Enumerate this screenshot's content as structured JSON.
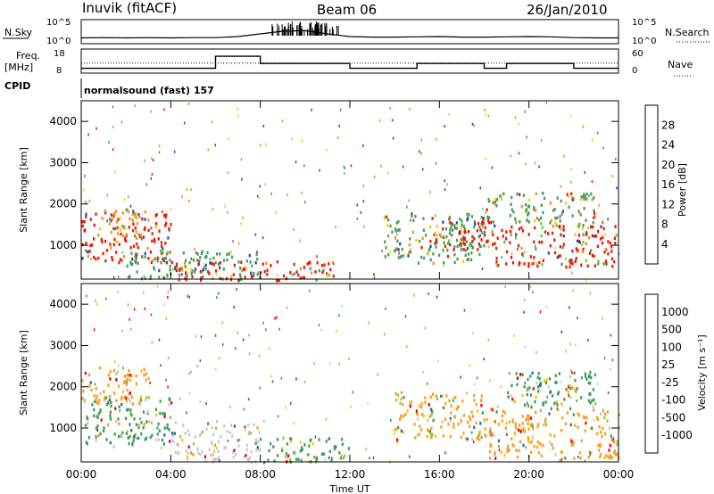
{
  "header": {
    "station": "Inuvik (fitACF)",
    "beam": "Beam 06",
    "date": "26/Jan/2010"
  },
  "top_panels": {
    "nsky_label": "N.Sky",
    "nsky_ticks": [
      "10^5",
      "10^0"
    ],
    "nsearch_label": "N.Search",
    "nsearch_ticks": [
      "10^5",
      "10^0"
    ],
    "freq_label": "Freq.",
    "freq_unit": "[MHz]",
    "freq_ticks": [
      "18",
      "8"
    ],
    "nave_label": "Nave",
    "nave_ticks": [
      "60",
      "0"
    ],
    "cpid_label": "CPID",
    "cpid_value": "normalsound (fast) 157"
  },
  "power_colorbar": {
    "label": "Power [dB]",
    "ticks": [
      "28",
      "24",
      "20",
      "16",
      "12",
      "8",
      "4"
    ],
    "colors": [
      "#ee0000",
      "#ff5a00",
      "#ff9a1a",
      "#f0d000",
      "#6cc83a",
      "#3a8a5a",
      "#2a4aaa",
      "#1030e0"
    ]
  },
  "velocity_colorbar": {
    "label": "Velocity [m s⁻¹]",
    "ticks": [
      "1000",
      "500",
      "100",
      "25",
      "-25",
      "-100",
      "-500",
      "-1000"
    ],
    "colors": [
      "#2030c0",
      "#2a6aa0",
      "#3a9a5a",
      "#7cd04a",
      "#c8c8c8",
      "#ffc000",
      "#ff8a10",
      "#ff5a00",
      "#ee0000"
    ]
  },
  "chart_data": [
    {
      "type": "line",
      "title": "N.Sky / N.Search",
      "x_hours": [
        0,
        1,
        2,
        3,
        4,
        5,
        6,
        7,
        8,
        9,
        10,
        11,
        12,
        13,
        14,
        15,
        16,
        17,
        18,
        19,
        20,
        21,
        22,
        23,
        24
      ],
      "series": [
        {
          "name": "N.Sky",
          "values": [
            1.5,
            1.6,
            1.5,
            1.6,
            1.5,
            1.6,
            1.6,
            2.0,
            3.0,
            4.0,
            4.2,
            3.0,
            2.0,
            1.8,
            1.8,
            1.9,
            2.0,
            1.8,
            1.8,
            1.9,
            2.0,
            1.9,
            1.6,
            1.5,
            1.5
          ]
        }
      ]
    },
    {
      "type": "line",
      "title": "Freq. / Nave",
      "x_hours": [
        0,
        1,
        2,
        3,
        4,
        5,
        6,
        7,
        8,
        9,
        10,
        11,
        12,
        13,
        14,
        15,
        16,
        17,
        18,
        19,
        20,
        21,
        22,
        23,
        24
      ],
      "series": [
        {
          "name": "Freq.",
          "values": [
            10,
            10,
            10,
            10,
            10,
            10,
            15,
            15,
            12,
            12,
            12,
            12,
            10,
            10,
            10,
            12,
            12,
            12,
            10,
            12,
            12,
            12,
            10,
            10,
            10
          ]
        },
        {
          "name": "Nave",
          "values": [
            25,
            25,
            25,
            25,
            25,
            25,
            25,
            25,
            25,
            25,
            25,
            25,
            25,
            25,
            25,
            25,
            25,
            25,
            25,
            25,
            25,
            25,
            25,
            25,
            25
          ]
        }
      ]
    },
    {
      "type": "heatmap",
      "title": "Power",
      "xlabel": "",
      "ylabel": "Slant Range [km]",
      "x_range_hours": [
        0,
        24
      ],
      "ylim": [
        180,
        4500
      ],
      "y_ticks": [
        1000,
        2000,
        3000,
        4000
      ],
      "regions": [
        {
          "t0": 0.0,
          "t1": 4.0,
          "r0": 600,
          "r1": 1800,
          "level": "red"
        },
        {
          "t0": 1.0,
          "t1": 3.0,
          "r0": 1200,
          "r1": 1900,
          "level": "orange"
        },
        {
          "t0": 2.0,
          "t1": 8.0,
          "r0": 200,
          "r1": 900,
          "level": "green"
        },
        {
          "t0": 4.0,
          "t1": 11.5,
          "r0": 180,
          "r1": 650,
          "level": "red"
        },
        {
          "t0": 13.5,
          "t1": 18.0,
          "r0": 600,
          "r1": 1800,
          "level": "green"
        },
        {
          "t0": 15.5,
          "t1": 18.5,
          "r0": 900,
          "r1": 1700,
          "level": "red"
        },
        {
          "t0": 18.5,
          "t1": 24.0,
          "r0": 500,
          "r1": 1500,
          "level": "red"
        },
        {
          "t0": 18.0,
          "t1": 23.0,
          "r0": 1500,
          "r1": 2300,
          "level": "green"
        }
      ]
    },
    {
      "type": "heatmap",
      "title": "Velocity",
      "xlabel": "Time UT",
      "ylabel": "Slant Range [km]",
      "x_range_hours": [
        0,
        24
      ],
      "x_ticks": [
        "00:00",
        "04:00",
        "08:00",
        "12:00",
        "16:00",
        "20:00",
        "00:00"
      ],
      "ylim": [
        180,
        4500
      ],
      "y_ticks": [
        1000,
        2000,
        3000,
        4000
      ],
      "regions": [
        {
          "t0": 0.0,
          "t1": 4.0,
          "r0": 600,
          "r1": 1800,
          "level": "green"
        },
        {
          "t0": 0.0,
          "t1": 3.0,
          "r0": 1600,
          "r1": 2500,
          "level": "orange"
        },
        {
          "t0": 4.0,
          "t1": 8.0,
          "r0": 200,
          "r1": 1200,
          "level": "gray"
        },
        {
          "t0": 8.0,
          "t1": 12.0,
          "r0": 200,
          "r1": 800,
          "level": "green"
        },
        {
          "t0": 14.0,
          "t1": 18.0,
          "r0": 700,
          "r1": 1900,
          "level": "orange"
        },
        {
          "t0": 18.0,
          "t1": 24.0,
          "r0": 300,
          "r1": 1500,
          "level": "orange"
        },
        {
          "t0": 19.0,
          "t1": 23.0,
          "r0": 1500,
          "r1": 2400,
          "level": "green"
        }
      ]
    }
  ]
}
